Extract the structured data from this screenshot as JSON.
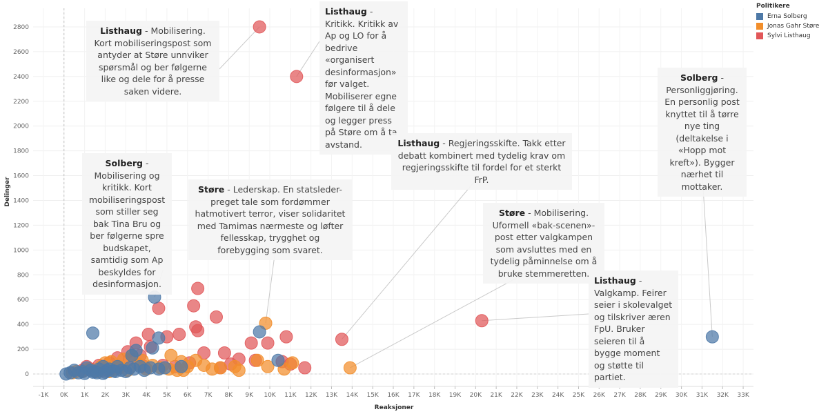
{
  "legend": {
    "title": "Politikere",
    "items": [
      {
        "name": "Erna Solberg",
        "color": "#4e79a7"
      },
      {
        "name": "Jonas Gahr Støre",
        "color": "#f28e2b"
      },
      {
        "name": "Sylvi Listhaug",
        "color": "#e15759"
      }
    ]
  },
  "annotations": [
    {
      "name": "Listhaug",
      "text": "Mobilisering. Kort mobiliseringspost som antyder at Støre unnviker spørsmål og ber følgerne like og dele for å presse saken videre.",
      "point": [
        9500,
        2800
      ],
      "politician": "Sylvi Listhaug"
    },
    {
      "name": "Listhaug",
      "text": "Kritikk. Kritikk av Ap og LO for å bedrive «organisert desinformasjon» før valget. Mobiliserer egne følgere til å dele og legger press på Støre om å ta avstand.",
      "point": [
        11300,
        2400
      ],
      "politician": "Sylvi Listhaug"
    },
    {
      "name": "Solberg",
      "text": "Personliggjøring. En personlig post knyttet til å tørre nye ting (deltakelse i «Hopp mot kreft»). Bygger nærhet til mottaker.",
      "point": [
        31500,
        300
      ],
      "politician": "Erna Solberg"
    },
    {
      "name": "Listhaug",
      "text": "Regjeringsskifte. Takk etter debatt kombinert med tydelig krav om regjeringsskifte til fordel for et sterkt FrP.",
      "point": [
        13500,
        280
      ],
      "politician": "Sylvi Listhaug"
    },
    {
      "name": "Solberg",
      "text": "Mobilisering og kritikk. Kort mobiliseringspost som stiller seg bak Tina Bru og ber følgerne spre budskapet, samtidig som Ap beskyldes for desinformasjon.",
      "point": [
        4400,
        620
      ],
      "politician": "Erna Solberg"
    },
    {
      "name": "Støre",
      "text": "Lederskap. En statsleder-preget tale som fordømmer hatmotivert terror, viser solidaritet med Tamimas nærmeste og løfter fellesskap, trygghet og forebygging som svaret.",
      "point": [
        9800,
        410
      ],
      "politician": "Jonas Gahr Støre"
    },
    {
      "name": "Støre",
      "text": "Mobilisering. Uformell «bak-scenen»-post etter valgkampen som avsluttes med en tydelig påminnelse om å bruke stemmeretten.",
      "point": [
        13900,
        50
      ],
      "politician": "Jonas Gahr Støre"
    },
    {
      "name": "Listhaug",
      "text": "Valgkamp. Feirer seier i skolevalget og tilskriver æren FpU. Bruker seieren til å bygge moment og støtte til partiet.",
      "point": [
        20300,
        430
      ],
      "politician": "Sylvi Listhaug"
    }
  ],
  "chart_data": {
    "type": "scatter",
    "title": "",
    "xlabel": "Reaksjoner",
    "ylabel": "Delinger",
    "xlim": [
      -1500,
      33500
    ],
    "ylim": [
      -100,
      2950
    ],
    "xticks": [
      -1000,
      0,
      1000,
      2000,
      3000,
      4000,
      5000,
      6000,
      7000,
      8000,
      9000,
      10000,
      11000,
      12000,
      13000,
      14000,
      15000,
      16000,
      17000,
      18000,
      19000,
      20000,
      21000,
      22000,
      23000,
      24000,
      25000,
      26000,
      27000,
      28000,
      29000,
      30000,
      31000,
      32000,
      33000
    ],
    "xtick_labels": [
      "-1K",
      "0K",
      "1K",
      "2K",
      "3K",
      "4K",
      "5K",
      "6K",
      "7K",
      "8K",
      "9K",
      "10K",
      "11K",
      "12K",
      "13K",
      "14K",
      "15K",
      "16K",
      "17K",
      "18K",
      "19K",
      "20K",
      "21K",
      "22K",
      "23K",
      "24K",
      "25K",
      "26K",
      "27K",
      "28K",
      "29K",
      "30K",
      "31K",
      "32K",
      "33K"
    ],
    "yticks": [
      0,
      200,
      400,
      600,
      800,
      1000,
      1200,
      1400,
      1600,
      1800,
      2000,
      2200,
      2400,
      2600,
      2800
    ],
    "grid": true,
    "series": [
      {
        "name": "Sylvi Listhaug",
        "color": "#e15759",
        "points": [
          [
            9500,
            2800
          ],
          [
            11300,
            2400
          ],
          [
            20300,
            430
          ],
          [
            13500,
            280
          ],
          [
            6500,
            690
          ],
          [
            6300,
            550
          ],
          [
            4600,
            530
          ],
          [
            7400,
            460
          ],
          [
            6400,
            380
          ],
          [
            6500,
            350
          ],
          [
            5600,
            320
          ],
          [
            5000,
            300
          ],
          [
            4100,
            320
          ],
          [
            3500,
            250
          ],
          [
            4200,
            220
          ],
          [
            3100,
            180
          ],
          [
            3700,
            150
          ],
          [
            2600,
            130
          ],
          [
            3200,
            120
          ],
          [
            6800,
            170
          ],
          [
            7800,
            170
          ],
          [
            9100,
            250
          ],
          [
            9900,
            250
          ],
          [
            10800,
            300
          ],
          [
            8500,
            120
          ],
          [
            9300,
            110
          ],
          [
            10600,
            100
          ],
          [
            11700,
            50
          ],
          [
            11000,
            80
          ],
          [
            8100,
            80
          ],
          [
            7600,
            50
          ],
          [
            6100,
            90
          ],
          [
            5400,
            60
          ],
          [
            4800,
            70
          ],
          [
            2200,
            90
          ],
          [
            1700,
            70
          ],
          [
            1100,
            60
          ],
          [
            900,
            30
          ],
          [
            1300,
            40
          ],
          [
            1900,
            30
          ],
          [
            2700,
            50
          ],
          [
            3900,
            60
          ]
        ]
      },
      {
        "name": "Jonas Gahr Støre",
        "color": "#f28e2b",
        "points": [
          [
            9800,
            410
          ],
          [
            13900,
            50
          ],
          [
            6400,
            110
          ],
          [
            5200,
            150
          ],
          [
            5700,
            100
          ],
          [
            7200,
            40
          ],
          [
            7600,
            50
          ],
          [
            8300,
            60
          ],
          [
            8500,
            30
          ],
          [
            9400,
            110
          ],
          [
            9900,
            60
          ],
          [
            11100,
            90
          ],
          [
            10700,
            40
          ],
          [
            3300,
            150
          ],
          [
            2900,
            120
          ],
          [
            2300,
            100
          ],
          [
            2000,
            90
          ],
          [
            2700,
            60
          ],
          [
            3600,
            80
          ],
          [
            4300,
            70
          ],
          [
            4700,
            50
          ],
          [
            5100,
            40
          ],
          [
            5500,
            30
          ],
          [
            6000,
            60
          ],
          [
            3100,
            30
          ],
          [
            2500,
            40
          ],
          [
            1800,
            60
          ],
          [
            1500,
            30
          ],
          [
            1200,
            40
          ],
          [
            900,
            20
          ],
          [
            600,
            20
          ],
          [
            400,
            10
          ],
          [
            4000,
            40
          ],
          [
            5800,
            30
          ],
          [
            6800,
            70
          ],
          [
            3800,
            110
          ],
          [
            2200,
            20
          ],
          [
            1600,
            20
          ]
        ]
      },
      {
        "name": "Erna Solberg",
        "color": "#4e79a7",
        "points": [
          [
            4400,
            620
          ],
          [
            31500,
            300
          ],
          [
            1400,
            330
          ],
          [
            9500,
            340
          ],
          [
            10400,
            110
          ],
          [
            4600,
            290
          ],
          [
            4300,
            210
          ],
          [
            3500,
            190
          ],
          [
            3300,
            150
          ],
          [
            3700,
            60
          ],
          [
            4900,
            50
          ],
          [
            5700,
            60
          ],
          [
            4600,
            40
          ],
          [
            4200,
            50
          ],
          [
            3900,
            30
          ],
          [
            3200,
            50
          ],
          [
            2800,
            30
          ],
          [
            2500,
            20
          ],
          [
            2100,
            30
          ],
          [
            1900,
            60
          ],
          [
            1700,
            40
          ],
          [
            1500,
            20
          ],
          [
            1300,
            30
          ],
          [
            1100,
            50
          ],
          [
            900,
            20
          ],
          [
            700,
            10
          ],
          [
            500,
            30
          ],
          [
            300,
            10
          ],
          [
            100,
            0
          ],
          [
            1600,
            10
          ],
          [
            1900,
            5
          ],
          [
            2200,
            40
          ],
          [
            2600,
            60
          ],
          [
            3000,
            20
          ],
          [
            3400,
            40
          ],
          [
            1000,
            5
          ],
          [
            1400,
            15
          ],
          [
            2000,
            15
          ],
          [
            2400,
            25
          ]
        ]
      }
    ]
  }
}
